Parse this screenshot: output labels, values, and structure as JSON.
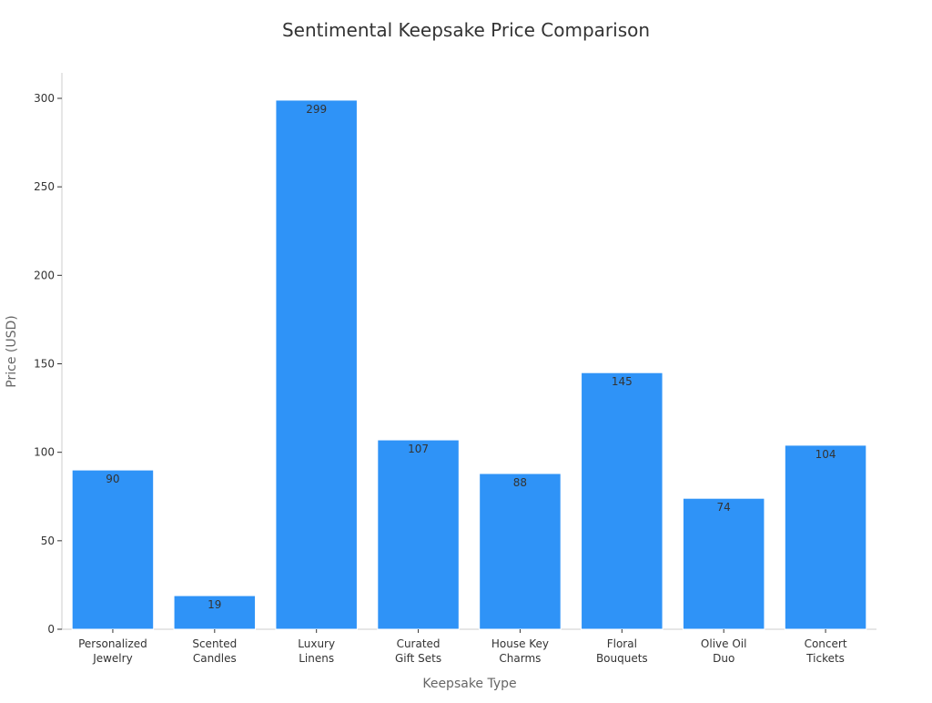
{
  "chart_data": {
    "type": "bar",
    "title": "Sentimental Keepsake Price Comparison",
    "xlabel": "Keepsake Type",
    "ylabel": "Price (USD)",
    "categories": [
      [
        "Personalized",
        "Jewelry"
      ],
      [
        "Scented",
        "Candles"
      ],
      [
        "Luxury",
        "Linens"
      ],
      [
        "Curated",
        "Gift Sets"
      ],
      [
        "House Key",
        "Charms"
      ],
      [
        "Floral",
        "Bouquets"
      ],
      [
        "Olive Oil",
        "Duo"
      ],
      [
        "Concert",
        "Tickets"
      ]
    ],
    "values": [
      90,
      19,
      299,
      107,
      88,
      145,
      74,
      104
    ],
    "ylim": [
      0,
      300
    ],
    "yticks": [
      0,
      50,
      100,
      150,
      200,
      250,
      300
    ],
    "grid": false,
    "legend": "none",
    "bar_color": "#2f93f7"
  }
}
